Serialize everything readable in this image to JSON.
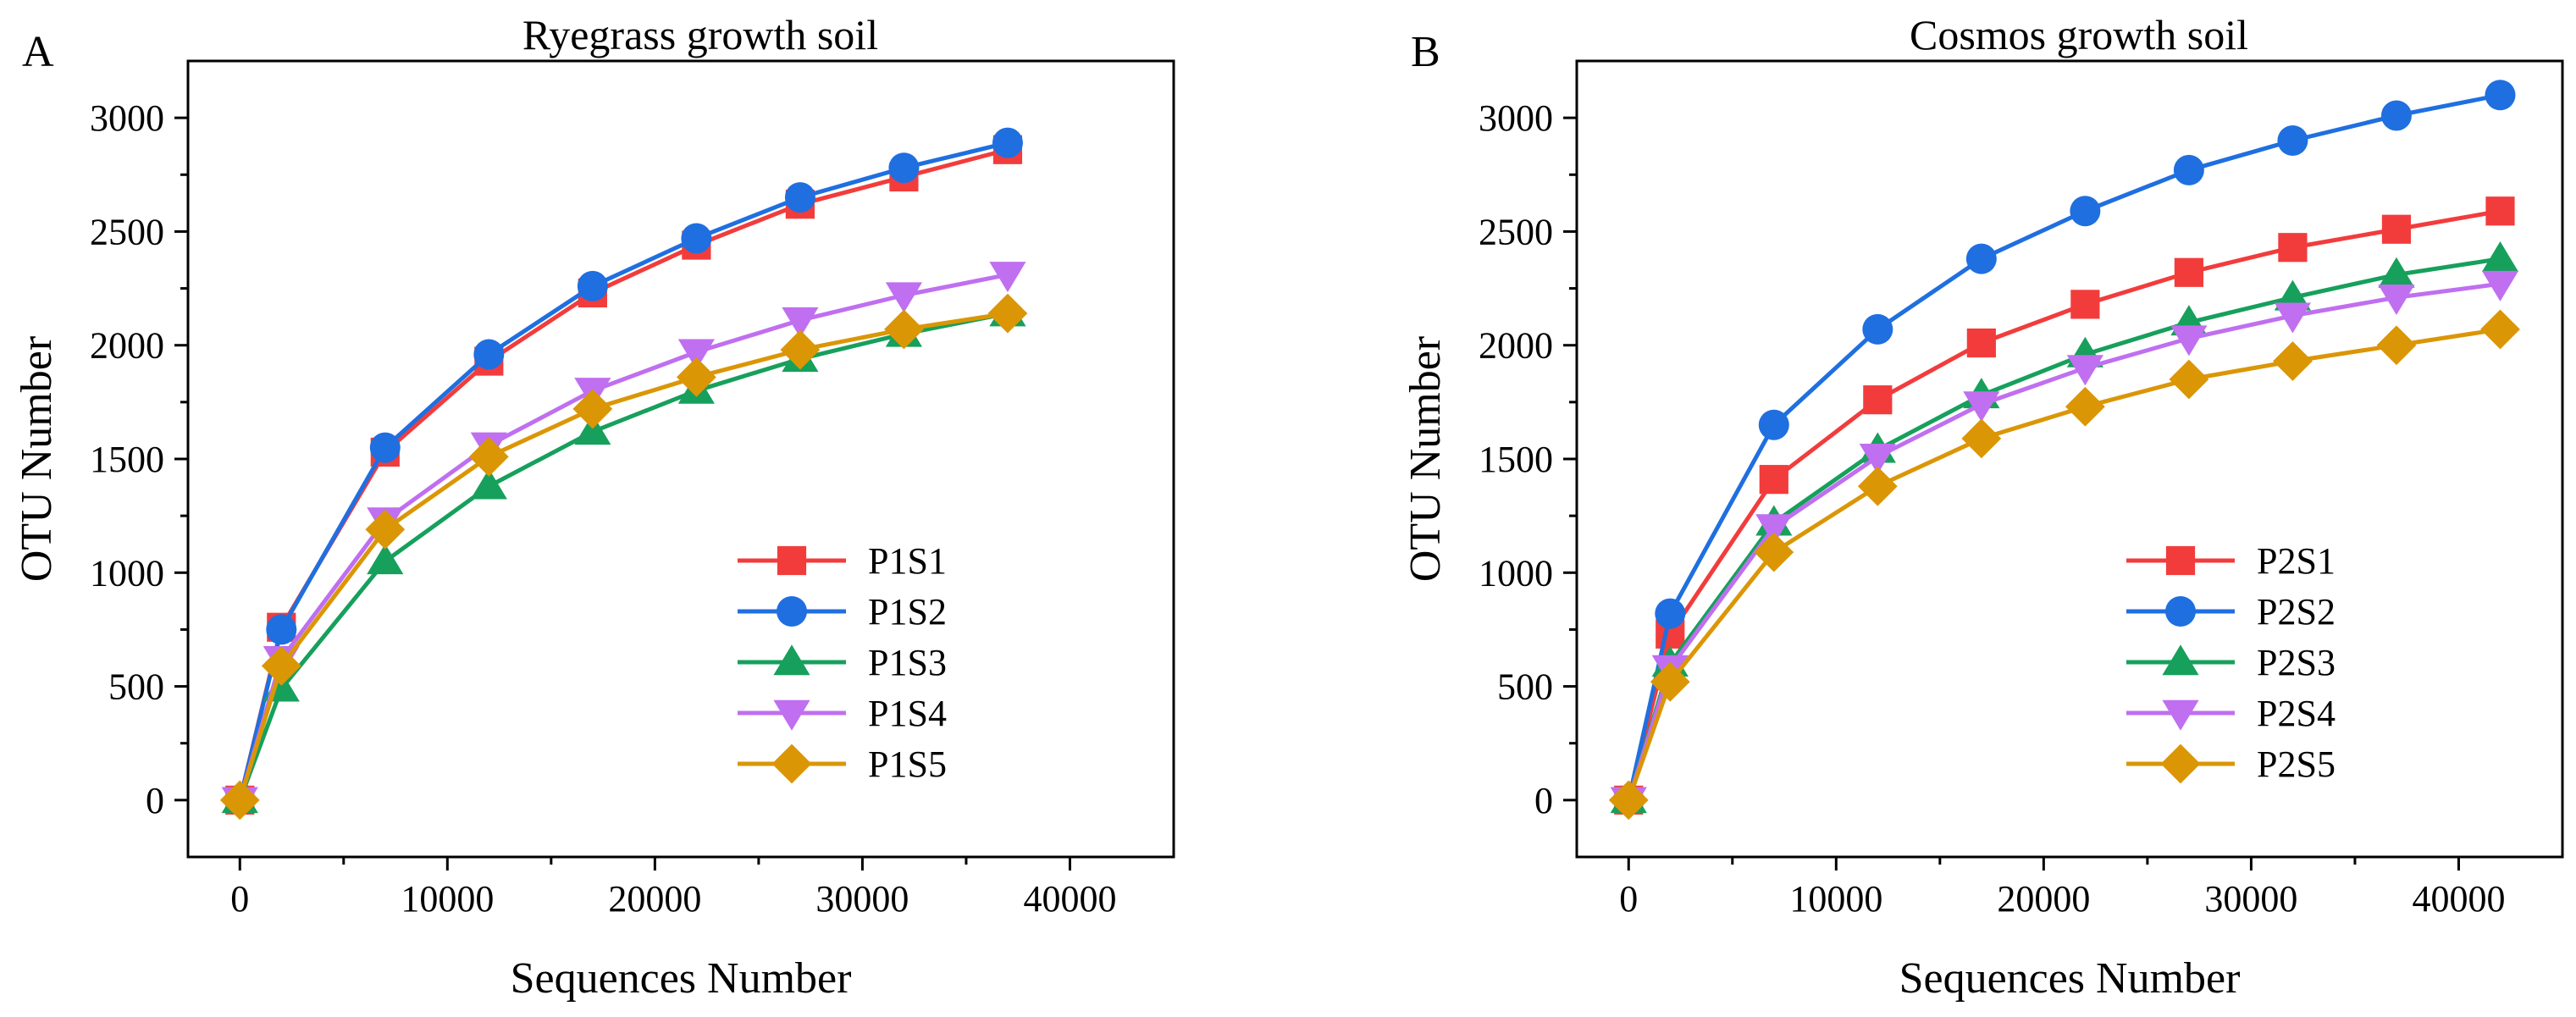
{
  "colors": {
    "P1S1": "#f23c3c",
    "P1S2": "#1f6fe0",
    "P1S3": "#16a05c",
    "P1S4": "#bf6ff0",
    "P1S5": "#db9606",
    "P2S1": "#f23c3c",
    "P2S2": "#1f6fe0",
    "P2S3": "#16a05c",
    "P2S4": "#bf6ff0",
    "P2S5": "#db9606"
  },
  "chart_data": [
    {
      "type": "line",
      "panel": "A",
      "title": "Ryegrass growth soil",
      "xlabel": "Sequences Number",
      "ylabel": "OTU Number",
      "xlim": [
        -2500,
        45000
      ],
      "ylim": [
        -250,
        3250
      ],
      "xticks": [
        0,
        10000,
        20000,
        30000,
        40000
      ],
      "yticks": [
        0,
        500,
        1000,
        1500,
        2000,
        2500,
        3000
      ],
      "grid": false,
      "legend_position": "bottom-right",
      "x": [
        0,
        2000,
        7000,
        12000,
        17000,
        22000,
        27000,
        32000,
        37000
      ],
      "series": [
        {
          "name": "P1S1",
          "marker": "square",
          "values": [
            0,
            760,
            1530,
            1930,
            2230,
            2440,
            2620,
            2740,
            2860
          ]
        },
        {
          "name": "P1S2",
          "marker": "circle",
          "values": [
            0,
            750,
            1550,
            1960,
            2260,
            2470,
            2650,
            2780,
            2890
          ]
        },
        {
          "name": "P1S3",
          "marker": "triangle-up",
          "values": [
            0,
            490,
            1050,
            1380,
            1620,
            1800,
            1940,
            2050,
            2140
          ]
        },
        {
          "name": "P1S4",
          "marker": "triangle-down",
          "values": [
            0,
            620,
            1230,
            1560,
            1800,
            1970,
            2110,
            2220,
            2310
          ]
        },
        {
          "name": "P1S5",
          "marker": "diamond",
          "values": [
            0,
            590,
            1190,
            1510,
            1720,
            1860,
            1980,
            2070,
            2140
          ]
        }
      ]
    },
    {
      "type": "line",
      "panel": "B",
      "title": "Cosmos growth soil",
      "xlabel": "Sequences Number",
      "ylabel": "OTU Number",
      "xlim": [
        -2500,
        45000
      ],
      "ylim": [
        -250,
        3250
      ],
      "xticks": [
        0,
        10000,
        20000,
        30000,
        40000
      ],
      "yticks": [
        0,
        500,
        1000,
        1500,
        2000,
        2500,
        3000
      ],
      "grid": false,
      "legend_position": "bottom-right",
      "x": [
        0,
        2000,
        7000,
        12000,
        17000,
        22000,
        27000,
        32000,
        37000,
        42000
      ],
      "series": [
        {
          "name": "P2S1",
          "marker": "square",
          "values": [
            0,
            730,
            1410,
            1760,
            2010,
            2180,
            2320,
            2430,
            2510,
            2590
          ]
        },
        {
          "name": "P2S2",
          "marker": "circle",
          "values": [
            0,
            820,
            1650,
            2070,
            2380,
            2590,
            2770,
            2900,
            3010,
            3100
          ]
        },
        {
          "name": "P2S3",
          "marker": "triangle-up",
          "values": [
            0,
            600,
            1220,
            1540,
            1780,
            1960,
            2100,
            2210,
            2310,
            2380
          ]
        },
        {
          "name": "P2S4",
          "marker": "triangle-down",
          "values": [
            0,
            580,
            1200,
            1510,
            1740,
            1900,
            2030,
            2130,
            2210,
            2270
          ]
        },
        {
          "name": "P2S5",
          "marker": "diamond",
          "values": [
            0,
            520,
            1090,
            1380,
            1590,
            1730,
            1850,
            1930,
            2000,
            2070
          ]
        }
      ]
    }
  ]
}
